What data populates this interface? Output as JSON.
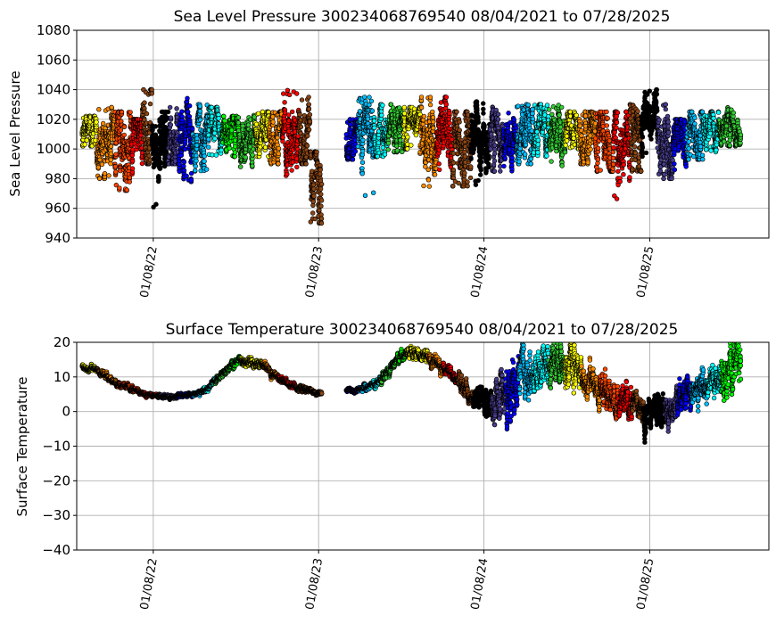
{
  "chart_data": [
    {
      "type": "scatter",
      "title": "Sea Level Pressure 300234068769540  08/04/2021 to 07/28/2025",
      "xlabel": "",
      "ylabel": "Sea Level Pressure",
      "ylim": [
        940,
        1080
      ],
      "yticks": [
        940,
        960,
        980,
        1000,
        1020,
        1040,
        1060,
        1080
      ],
      "xlim": [
        "2021-07-23",
        "2025-09-28"
      ],
      "xticks": [
        {
          "date": "2022-01-08",
          "label": "01/08/22"
        },
        {
          "date": "2023-01-08",
          "label": "01/08/23"
        },
        {
          "date": "2024-01-08",
          "label": "01/08/24"
        },
        {
          "date": "2025-01-08",
          "label": "01/08/25"
        }
      ],
      "grid": true,
      "marker_edge_color": "#000000",
      "data_gap": [
        "2023-01-15",
        "2023-03-10"
      ],
      "series": [
        {
          "start": "2021-08-04",
          "end": "2021-09-05",
          "color": "#ffff00",
          "center": 1012,
          "spread": 8,
          "low": 1002,
          "high": 1022
        },
        {
          "start": "2021-09-05",
          "end": "2021-10-15",
          "color": "#ff8c00",
          "center": 1005,
          "spread": 12,
          "low": 980,
          "high": 1028
        },
        {
          "start": "2021-10-15",
          "end": "2021-11-20",
          "color": "#ff4500",
          "center": 1000,
          "spread": 14,
          "low": 972,
          "high": 1025
        },
        {
          "start": "2021-11-20",
          "end": "2021-12-15",
          "color": "#ff0000",
          "center": 1003,
          "spread": 12,
          "low": 980,
          "high": 1020
        },
        {
          "start": "2021-12-15",
          "end": "2022-01-05",
          "color": "#8b4513",
          "center": 1015,
          "spread": 14,
          "low": 990,
          "high": 1040
        },
        {
          "start": "2022-01-05",
          "end": "2022-02-10",
          "color": "#000000",
          "center": 1000,
          "spread": 14,
          "low": 960,
          "high": 1025
        },
        {
          "start": "2022-02-10",
          "end": "2022-03-05",
          "color": "#483d8b",
          "center": 1008,
          "spread": 10,
          "low": 990,
          "high": 1030
        },
        {
          "start": "2022-03-05",
          "end": "2022-04-05",
          "color": "#0000ff",
          "center": 1005,
          "spread": 12,
          "low": 978,
          "high": 1035
        },
        {
          "start": "2022-04-05",
          "end": "2022-05-10",
          "color": "#00bfff",
          "center": 1010,
          "spread": 10,
          "low": 985,
          "high": 1030
        },
        {
          "start": "2022-05-10",
          "end": "2022-06-10",
          "color": "#00ffff",
          "center": 1012,
          "spread": 8,
          "low": 995,
          "high": 1028
        },
        {
          "start": "2022-06-10",
          "end": "2022-07-15",
          "color": "#00ff00",
          "center": 1012,
          "spread": 8,
          "low": 995,
          "high": 1022
        },
        {
          "start": "2022-07-15",
          "end": "2022-08-20",
          "color": "#32cd32",
          "center": 1010,
          "spread": 10,
          "low": 988,
          "high": 1025
        },
        {
          "start": "2022-08-20",
          "end": "2022-09-20",
          "color": "#ffff00",
          "center": 1012,
          "spread": 8,
          "low": 995,
          "high": 1025
        },
        {
          "start": "2022-09-20",
          "end": "2022-10-20",
          "color": "#ff8c00",
          "center": 1008,
          "spread": 10,
          "low": 990,
          "high": 1025
        },
        {
          "start": "2022-10-20",
          "end": "2022-11-25",
          "color": "#ff0000",
          "center": 1008,
          "spread": 12,
          "low": 982,
          "high": 1040
        },
        {
          "start": "2022-11-25",
          "end": "2022-12-20",
          "color": "#8b4513",
          "center": 1012,
          "spread": 12,
          "low": 990,
          "high": 1035
        },
        {
          "start": "2022-12-20",
          "end": "2023-01-15",
          "color": "#8b4513",
          "center": 980,
          "spread": 14,
          "low": 950,
          "high": 998
        },
        {
          "start": "2023-03-10",
          "end": "2023-04-05",
          "color": "#0000ff",
          "center": 1005,
          "spread": 8,
          "low": 993,
          "high": 1020
        },
        {
          "start": "2023-04-05",
          "end": "2023-05-10",
          "color": "#00bfff",
          "center": 1010,
          "spread": 12,
          "low": 968,
          "high": 1035
        },
        {
          "start": "2023-05-10",
          "end": "2023-06-10",
          "color": "#00ffff",
          "center": 1013,
          "spread": 8,
          "low": 995,
          "high": 1030
        },
        {
          "start": "2023-06-10",
          "end": "2023-07-15",
          "color": "#32cd32",
          "center": 1013,
          "spread": 8,
          "low": 998,
          "high": 1030
        },
        {
          "start": "2023-07-15",
          "end": "2023-08-20",
          "color": "#ffff00",
          "center": 1015,
          "spread": 8,
          "low": 1000,
          "high": 1028
        },
        {
          "start": "2023-08-20",
          "end": "2023-09-25",
          "color": "#ff8c00",
          "center": 1008,
          "spread": 12,
          "low": 972,
          "high": 1035
        },
        {
          "start": "2023-09-25",
          "end": "2023-10-30",
          "color": "#ff0000",
          "center": 1008,
          "spread": 12,
          "low": 985,
          "high": 1035
        },
        {
          "start": "2023-10-30",
          "end": "2023-12-10",
          "color": "#8b4513",
          "center": 1000,
          "spread": 14,
          "low": 975,
          "high": 1025
        },
        {
          "start": "2023-12-10",
          "end": "2024-01-20",
          "color": "#000000",
          "center": 1005,
          "spread": 12,
          "low": 975,
          "high": 1032
        },
        {
          "start": "2024-01-20",
          "end": "2024-02-20",
          "color": "#483d8b",
          "center": 1010,
          "spread": 10,
          "low": 985,
          "high": 1035
        },
        {
          "start": "2024-02-20",
          "end": "2024-03-20",
          "color": "#0000ff",
          "center": 1008,
          "spread": 10,
          "low": 985,
          "high": 1028
        },
        {
          "start": "2024-03-20",
          "end": "2024-04-25",
          "color": "#00bfff",
          "center": 1010,
          "spread": 10,
          "low": 990,
          "high": 1030
        },
        {
          "start": "2024-04-25",
          "end": "2024-05-30",
          "color": "#00ffff",
          "center": 1012,
          "spread": 8,
          "low": 995,
          "high": 1030
        },
        {
          "start": "2024-05-30",
          "end": "2024-07-05",
          "color": "#32cd32",
          "center": 1012,
          "spread": 8,
          "low": 988,
          "high": 1030
        },
        {
          "start": "2024-07-05",
          "end": "2024-08-05",
          "color": "#ffff00",
          "center": 1013,
          "spread": 7,
          "low": 1000,
          "high": 1025
        },
        {
          "start": "2024-08-05",
          "end": "2024-09-10",
          "color": "#ff8c00",
          "center": 1008,
          "spread": 10,
          "low": 990,
          "high": 1025
        },
        {
          "start": "2024-09-10",
          "end": "2024-10-20",
          "color": "#ff4500",
          "center": 1005,
          "spread": 12,
          "low": 985,
          "high": 1025
        },
        {
          "start": "2024-10-20",
          "end": "2024-11-25",
          "color": "#ff0000",
          "center": 1003,
          "spread": 12,
          "low": 966,
          "high": 1025
        },
        {
          "start": "2024-11-25",
          "end": "2024-12-20",
          "color": "#8b4513",
          "center": 1008,
          "spread": 12,
          "low": 985,
          "high": 1030
        },
        {
          "start": "2024-12-20",
          "end": "2025-01-25",
          "color": "#000000",
          "center": 1015,
          "spread": 12,
          "low": 995,
          "high": 1040
        },
        {
          "start": "2025-01-25",
          "end": "2025-02-28",
          "color": "#483d8b",
          "center": 1005,
          "spread": 12,
          "low": 980,
          "high": 1030
        },
        {
          "start": "2025-02-28",
          "end": "2025-03-30",
          "color": "#0000ff",
          "center": 1005,
          "spread": 10,
          "low": 985,
          "high": 1020
        },
        {
          "start": "2025-03-30",
          "end": "2025-05-05",
          "color": "#00bfff",
          "center": 1008,
          "spread": 10,
          "low": 993,
          "high": 1025
        },
        {
          "start": "2025-05-05",
          "end": "2025-06-10",
          "color": "#00ffff",
          "center": 1012,
          "spread": 8,
          "low": 998,
          "high": 1025
        },
        {
          "start": "2025-06-10",
          "end": "2025-07-28",
          "color": "#32cd32",
          "center": 1015,
          "spread": 7,
          "low": 1002,
          "high": 1030
        }
      ]
    },
    {
      "type": "scatter",
      "title": "Surface Temperature 300234068769540  08/04/2021 to 07/28/2025",
      "xlabel": "",
      "ylabel": "Surface Temperature",
      "ylim": [
        -40,
        20
      ],
      "yticks": [
        -40,
        -30,
        -20,
        -10,
        0,
        10,
        20
      ],
      "xlim": [
        "2021-07-23",
        "2025-09-28"
      ],
      "xticks": [
        {
          "date": "2022-01-08",
          "label": "01/08/22"
        },
        {
          "date": "2023-01-08",
          "label": "01/08/23"
        },
        {
          "date": "2024-01-08",
          "label": "01/08/24"
        },
        {
          "date": "2025-01-08",
          "label": "01/08/25"
        }
      ],
      "grid": true,
      "marker_edge_color": "#000000",
      "data_gap": [
        "2023-01-15",
        "2023-03-10"
      ],
      "series": [
        {
          "start": "2021-08-04",
          "end": "2021-09-05",
          "color": "#ffff00",
          "from": 13,
          "to": 12,
          "spread": 0.6
        },
        {
          "start": "2021-09-05",
          "end": "2021-10-20",
          "color": "#ff8c00",
          "from": 12,
          "to": 8,
          "spread": 0.5
        },
        {
          "start": "2021-10-20",
          "end": "2021-12-10",
          "color": "#ff4500",
          "from": 8,
          "to": 5.5,
          "spread": 0.4
        },
        {
          "start": "2021-12-10",
          "end": "2022-01-20",
          "color": "#ff0000",
          "from": 5.5,
          "to": 4.5,
          "spread": 0.3
        },
        {
          "start": "2022-01-20",
          "end": "2022-03-01",
          "color": "#483d8b",
          "from": 4.5,
          "to": 4.3,
          "spread": 0.3
        },
        {
          "start": "2022-03-01",
          "end": "2022-04-05",
          "color": "#0000ff",
          "from": 4.3,
          "to": 4.8,
          "spread": 0.3
        },
        {
          "start": "2022-04-05",
          "end": "2022-05-01",
          "color": "#00bfff",
          "from": 4.8,
          "to": 6,
          "spread": 0.4
        },
        {
          "start": "2022-05-01",
          "end": "2022-05-25",
          "color": "#00ffff",
          "from": 6,
          "to": 9,
          "spread": 0.5
        },
        {
          "start": "2022-05-25",
          "end": "2022-06-25",
          "color": "#32cd32",
          "from": 9,
          "to": 13,
          "spread": 0.6
        },
        {
          "start": "2022-06-25",
          "end": "2022-07-20",
          "color": "#00ff00",
          "from": 13,
          "to": 15,
          "spread": 0.7
        },
        {
          "start": "2022-07-20",
          "end": "2022-09-05",
          "color": "#ffff00",
          "from": 15,
          "to": 13.5,
          "spread": 0.8
        },
        {
          "start": "2022-09-05",
          "end": "2022-10-10",
          "color": "#ff8c00",
          "from": 13.5,
          "to": 10,
          "spread": 0.7
        },
        {
          "start": "2022-10-10",
          "end": "2022-11-20",
          "color": "#ff0000",
          "from": 10,
          "to": 7,
          "spread": 0.5
        },
        {
          "start": "2022-11-20",
          "end": "2023-01-15",
          "color": "#8b4513",
          "from": 7,
          "to": 5,
          "spread": 0.4
        },
        {
          "start": "2023-03-10",
          "end": "2023-04-05",
          "color": "#0000ff",
          "from": 6,
          "to": 6.3,
          "spread": 0.3
        },
        {
          "start": "2023-04-05",
          "end": "2023-05-01",
          "color": "#00bfff",
          "from": 6.3,
          "to": 7,
          "spread": 0.5
        },
        {
          "start": "2023-05-01",
          "end": "2023-05-25",
          "color": "#00ffff",
          "from": 7,
          "to": 9,
          "spread": 0.6
        },
        {
          "start": "2023-05-25",
          "end": "2023-06-25",
          "color": "#32cd32",
          "from": 9,
          "to": 14,
          "spread": 0.8
        },
        {
          "start": "2023-06-25",
          "end": "2023-07-20",
          "color": "#00ff00",
          "from": 14,
          "to": 17,
          "spread": 0.8
        },
        {
          "start": "2023-07-20",
          "end": "2023-09-05",
          "color": "#ffff00",
          "from": 17,
          "to": 16,
          "spread": 1
        },
        {
          "start": "2023-09-05",
          "end": "2023-10-10",
          "color": "#ff8c00",
          "from": 16,
          "to": 13,
          "spread": 1
        },
        {
          "start": "2023-10-10",
          "end": "2023-11-10",
          "color": "#ff0000",
          "from": 13,
          "to": 9,
          "spread": 1
        },
        {
          "start": "2023-11-10",
          "end": "2023-12-15",
          "color": "#8b4513",
          "from": 9,
          "to": 4,
          "spread": 1.5
        },
        {
          "start": "2023-12-15",
          "end": "2024-01-25",
          "color": "#000000",
          "from": 4,
          "to": 2,
          "spread": 2
        },
        {
          "start": "2024-01-25",
          "end": "2024-02-25",
          "color": "#483d8b",
          "from": 3,
          "to": 5,
          "spread": 3
        },
        {
          "start": "2024-02-25",
          "end": "2024-03-25",
          "color": "#0000ff",
          "from": 5,
          "to": 10,
          "spread": 5
        },
        {
          "start": "2024-03-25",
          "end": "2024-04-25",
          "color": "#00bfff",
          "from": 8,
          "to": 12,
          "spread": 4
        },
        {
          "start": "2024-04-25",
          "end": "2024-05-30",
          "color": "#00ffff",
          "from": 10,
          "to": 14,
          "spread": 3
        },
        {
          "start": "2024-05-30",
          "end": "2024-07-05",
          "color": "#32cd32",
          "from": 12,
          "to": 15,
          "spread": 3
        },
        {
          "start": "2024-07-05",
          "end": "2024-08-10",
          "color": "#ffff00",
          "from": 14,
          "to": 12,
          "spread": 3
        },
        {
          "start": "2024-08-10",
          "end": "2024-09-20",
          "color": "#ff8c00",
          "from": 11,
          "to": 6,
          "spread": 3
        },
        {
          "start": "2024-09-20",
          "end": "2024-10-30",
          "color": "#ff4500",
          "from": 6,
          "to": 3,
          "spread": 2.5
        },
        {
          "start": "2024-10-30",
          "end": "2024-11-30",
          "color": "#ff0000",
          "from": 3,
          "to": 1,
          "spread": 2
        },
        {
          "start": "2024-11-30",
          "end": "2024-12-25",
          "color": "#8b4513",
          "from": 2,
          "to": 1,
          "spread": 2
        },
        {
          "start": "2024-12-25",
          "end": "2025-02-10",
          "color": "#000000",
          "from": 1,
          "to": 0.5,
          "spread": 2.5
        },
        {
          "start": "2025-02-10",
          "end": "2025-03-10",
          "color": "#483d8b",
          "from": 0,
          "to": 2,
          "spread": 2
        },
        {
          "start": "2025-03-10",
          "end": "2025-04-10",
          "color": "#0000ff",
          "from": 2,
          "to": 5,
          "spread": 2.5
        },
        {
          "start": "2025-04-10",
          "end": "2025-05-15",
          "color": "#00bfff",
          "from": 5,
          "to": 8,
          "spread": 2.5
        },
        {
          "start": "2025-05-15",
          "end": "2025-06-15",
          "color": "#00ffff",
          "from": 8,
          "to": 10,
          "spread": 2.5
        },
        {
          "start": "2025-06-15",
          "end": "2025-07-28",
          "color": "#00ff00",
          "from": 10,
          "to": 16,
          "spread": 4
        }
      ]
    }
  ]
}
